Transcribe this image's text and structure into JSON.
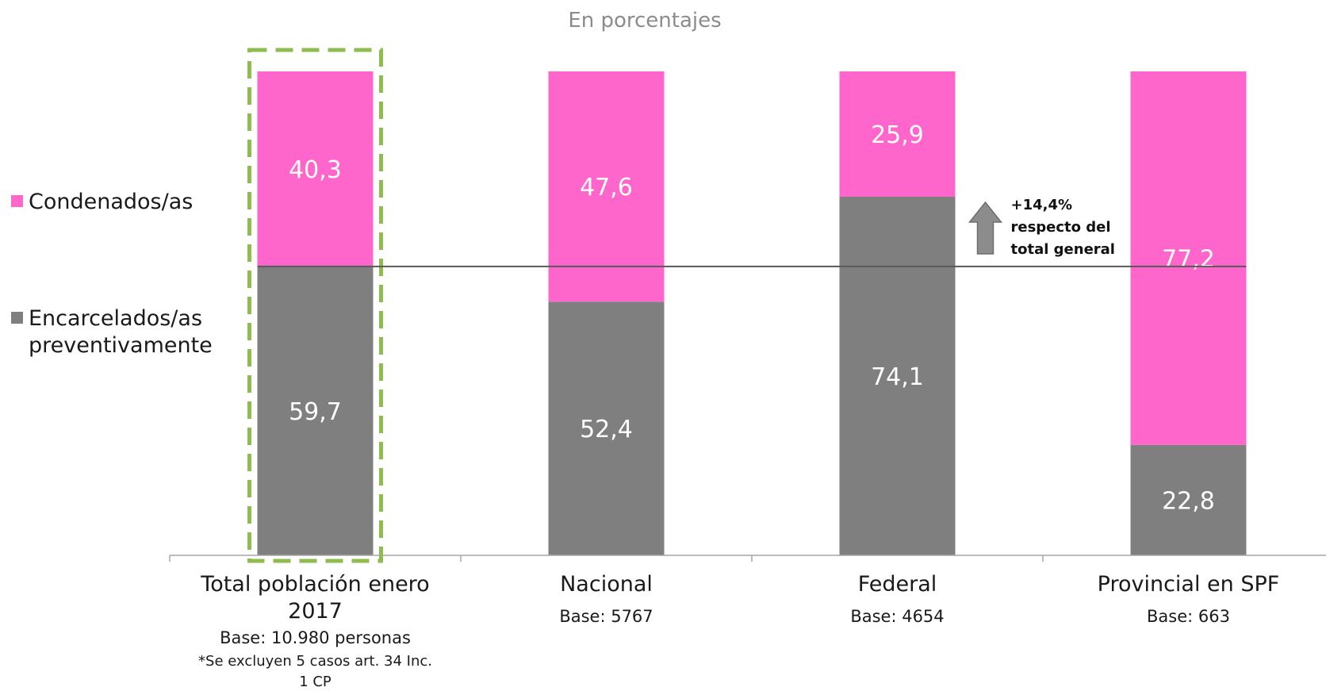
{
  "chart_data": {
    "type": "bar",
    "stacked": true,
    "subtitle": "En porcentajes",
    "categories": [
      {
        "label_lines": [
          "Total población enero",
          "2017"
        ],
        "base": "Base: 10.980 personas",
        "note_lines": [
          "*Se excluyen 5 casos art. 34 Inc.",
          "1 CP"
        ],
        "highlighted": true
      },
      {
        "label_lines": [
          "Nacional"
        ],
        "base": "Base: 5767",
        "note_lines": [],
        "highlighted": false
      },
      {
        "label_lines": [
          "Federal"
        ],
        "base": "Base: 4654",
        "note_lines": [],
        "highlighted": false
      },
      {
        "label_lines": [
          "Provincial en SPF"
        ],
        "base": "Base: 663",
        "note_lines": [],
        "highlighted": false
      }
    ],
    "series": [
      {
        "name_lines": [
          "Encarcelados/as",
          "preventivamente"
        ],
        "color": "#7f7f7f",
        "values": [
          59.7,
          52.4,
          74.1,
          22.8
        ],
        "labels": [
          "59,7",
          "52,4",
          "74,1",
          "22,8"
        ]
      },
      {
        "name_lines": [
          "Condenados/as"
        ],
        "color": "#ff66cc",
        "values": [
          40.3,
          47.6,
          25.9,
          77.2
        ],
        "labels": [
          "40,3",
          "47,6",
          "25,9",
          "77,2"
        ]
      }
    ],
    "ylim": [
      0,
      100
    ],
    "reference_line": 59.7,
    "annotation": {
      "lines": [
        "+14,4%",
        "respecto del",
        "total general"
      ],
      "category_index": 2,
      "arrow": "up"
    },
    "grid": false,
    "legend_position": "left",
    "colors": {
      "highlight_box": "#8fbc4f",
      "reference_line": "#595959",
      "axis": "#a6a6a6",
      "arrow_fill": "#8c8c8c"
    }
  }
}
